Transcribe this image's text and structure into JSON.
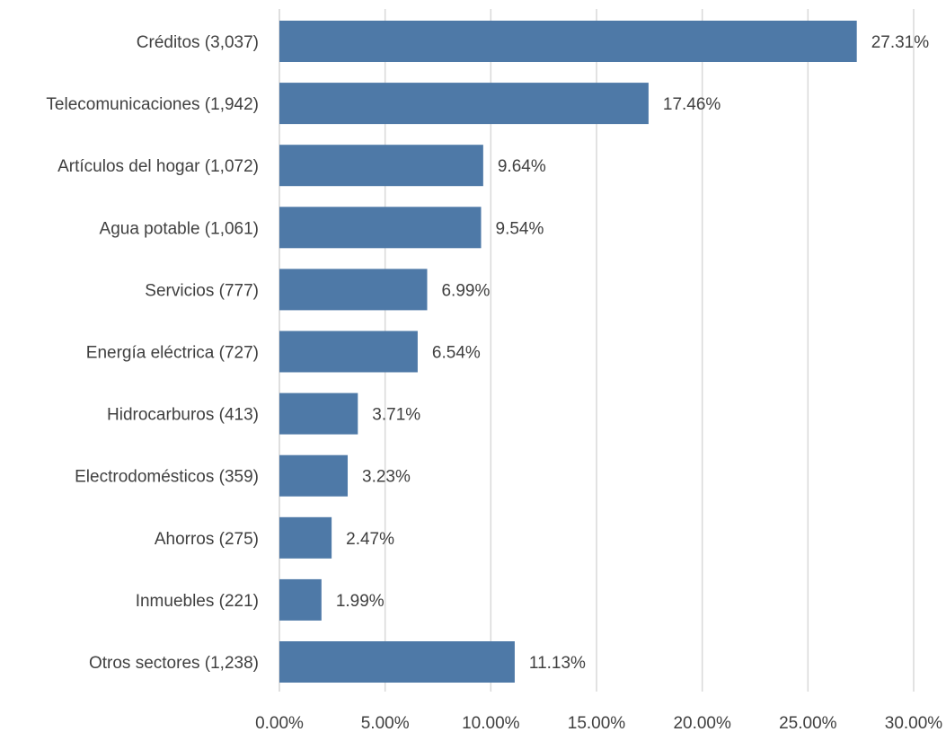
{
  "chart_data": {
    "type": "bar",
    "orientation": "horizontal",
    "categories": [
      "Créditos (3,037)",
      "Telecomunicaciones (1,942)",
      "Artículos del hogar (1,072)",
      "Agua potable (1,061)",
      "Servicios (777)",
      "Energía eléctrica (727)",
      "Hidrocarburos (413)",
      "Electrodomésticos (359)",
      "Ahorros (275)",
      "Inmuebles (221)",
      "Otros sectores (1,238)"
    ],
    "values": [
      27.31,
      17.46,
      9.64,
      9.54,
      6.99,
      6.54,
      3.71,
      3.23,
      2.47,
      1.99,
      11.13
    ],
    "data_labels": [
      "27.31%",
      "17.46%",
      "9.64%",
      "9.54%",
      "6.99%",
      "6.54%",
      "3.71%",
      "3.23%",
      "2.47%",
      "1.99%",
      "11.13%"
    ],
    "x_ticks": [
      "0.00%",
      "5.00%",
      "10.00%",
      "15.00%",
      "20.00%",
      "25.00%",
      "30.00%"
    ],
    "xlim": [
      0,
      30
    ],
    "xlabel": "",
    "ylabel": "",
    "title": "",
    "grid": true,
    "legend": false,
    "bar_color": "#4e79a7"
  }
}
